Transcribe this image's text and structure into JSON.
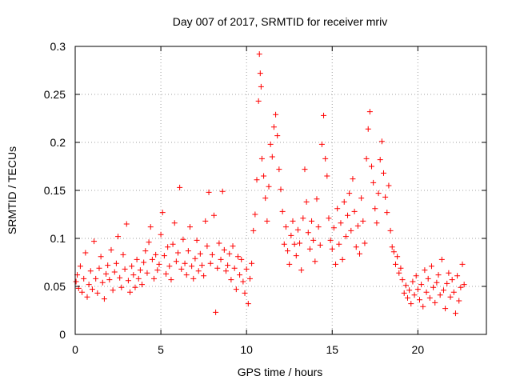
{
  "chart_data": {
    "type": "scatter",
    "title": "Day 007 of 2017, SRMTID for receiver mriv",
    "xlabel": "GPS time / hours",
    "ylabel": "SRMTID / TECUs",
    "xlim": [
      0,
      24
    ],
    "ylim": [
      0,
      0.3
    ],
    "xticks": [
      0,
      5,
      10,
      15,
      20
    ],
    "yticks": [
      0,
      0.05,
      0.1,
      0.15,
      0.2,
      0.25,
      0.3
    ],
    "xtick_labels": [
      "0",
      "5",
      "10",
      "15",
      "20"
    ],
    "ytick_labels": [
      "0",
      "0.05",
      "0.1",
      "0.15",
      "0.2",
      "0.25",
      "0.3"
    ],
    "grid": true,
    "marker": "+",
    "color": "#ff0000",
    "series": [
      {
        "name": "SRMTID",
        "points": [
          [
            0.05,
            0.055
          ],
          [
            0.12,
            0.062
          ],
          [
            0.2,
            0.048
          ],
          [
            0.3,
            0.071
          ],
          [
            0.4,
            0.044
          ],
          [
            0.5,
            0.058
          ],
          [
            0.6,
            0.085
          ],
          [
            0.7,
            0.039
          ],
          [
            0.8,
            0.052
          ],
          [
            0.9,
            0.066
          ],
          [
            1.0,
            0.047
          ],
          [
            1.1,
            0.097
          ],
          [
            1.2,
            0.058
          ],
          [
            1.3,
            0.043
          ],
          [
            1.4,
            0.069
          ],
          [
            1.5,
            0.081
          ],
          [
            1.6,
            0.054
          ],
          [
            1.7,
            0.037
          ],
          [
            1.8,
            0.063
          ],
          [
            1.9,
            0.072
          ],
          [
            2.0,
            0.057
          ],
          [
            2.1,
            0.088
          ],
          [
            2.2,
            0.046
          ],
          [
            2.3,
            0.065
          ],
          [
            2.4,
            0.074
          ],
          [
            2.5,
            0.102
          ],
          [
            2.6,
            0.059
          ],
          [
            2.7,
            0.049
          ],
          [
            2.8,
            0.083
          ],
          [
            2.9,
            0.068
          ],
          [
            3.0,
            0.115
          ],
          [
            3.1,
            0.056
          ],
          [
            3.2,
            0.044
          ],
          [
            3.3,
            0.071
          ],
          [
            3.4,
            0.062
          ],
          [
            3.5,
            0.049
          ],
          [
            3.6,
            0.078
          ],
          [
            3.7,
            0.058
          ],
          [
            3.8,
            0.067
          ],
          [
            3.9,
            0.052
          ],
          [
            4.0,
            0.075
          ],
          [
            4.1,
            0.087
          ],
          [
            4.2,
            0.064
          ],
          [
            4.3,
            0.096
          ],
          [
            4.4,
            0.112
          ],
          [
            4.5,
            0.078
          ],
          [
            4.6,
            0.058
          ],
          [
            4.7,
            0.083
          ],
          [
            4.8,
            0.067
          ],
          [
            4.9,
            0.073
          ],
          [
            5.0,
            0.104
          ],
          [
            5.1,
            0.127
          ],
          [
            5.2,
            0.082
          ],
          [
            5.3,
            0.063
          ],
          [
            5.4,
            0.091
          ],
          [
            5.5,
            0.071
          ],
          [
            5.6,
            0.057
          ],
          [
            5.7,
            0.094
          ],
          [
            5.8,
            0.116
          ],
          [
            5.9,
            0.076
          ],
          [
            6.0,
            0.085
          ],
          [
            6.1,
            0.153
          ],
          [
            6.2,
            0.068
          ],
          [
            6.3,
            0.099
          ],
          [
            6.4,
            0.074
          ],
          [
            6.5,
            0.062
          ],
          [
            6.6,
            0.087
          ],
          [
            6.7,
            0.112
          ],
          [
            6.8,
            0.071
          ],
          [
            6.9,
            0.058
          ],
          [
            7.0,
            0.079
          ],
          [
            7.1,
            0.098
          ],
          [
            7.2,
            0.066
          ],
          [
            7.3,
            0.084
          ],
          [
            7.4,
            0.072
          ],
          [
            7.5,
            0.061
          ],
          [
            7.6,
            0.118
          ],
          [
            7.7,
            0.092
          ],
          [
            7.8,
            0.148
          ],
          [
            7.9,
            0.074
          ],
          [
            8.0,
            0.083
          ],
          [
            8.1,
            0.124
          ],
          [
            8.2,
            0.023
          ],
          [
            8.3,
            0.069
          ],
          [
            8.4,
            0.095
          ],
          [
            8.5,
            0.078
          ],
          [
            8.6,
            0.149
          ],
          [
            8.7,
            0.088
          ],
          [
            8.8,
            0.066
          ],
          [
            8.9,
            0.072
          ],
          [
            9.0,
            0.084
          ],
          [
            9.1,
            0.057
          ],
          [
            9.2,
            0.092
          ],
          [
            9.3,
            0.069
          ],
          [
            9.4,
            0.047
          ],
          [
            9.5,
            0.081
          ],
          [
            9.6,
            0.062
          ],
          [
            9.7,
            0.078
          ],
          [
            9.8,
            0.055
          ],
          [
            9.9,
            0.043
          ],
          [
            10.0,
            0.068
          ],
          [
            10.1,
            0.032
          ],
          [
            10.2,
            0.058
          ],
          [
            10.3,
            0.074
          ],
          [
            10.4,
            0.108
          ],
          [
            10.5,
            0.125
          ],
          [
            10.6,
            0.161
          ],
          [
            10.7,
            0.243
          ],
          [
            10.75,
            0.292
          ],
          [
            10.8,
            0.272
          ],
          [
            10.85,
            0.258
          ],
          [
            10.9,
            0.183
          ],
          [
            11.0,
            0.165
          ],
          [
            11.1,
            0.142
          ],
          [
            11.2,
            0.118
          ],
          [
            11.3,
            0.154
          ],
          [
            11.4,
            0.198
          ],
          [
            11.5,
            0.185
          ],
          [
            11.6,
            0.216
          ],
          [
            11.7,
            0.229
          ],
          [
            11.8,
            0.207
          ],
          [
            11.9,
            0.172
          ],
          [
            12.0,
            0.151
          ],
          [
            12.1,
            0.128
          ],
          [
            12.2,
            0.094
          ],
          [
            12.3,
            0.112
          ],
          [
            12.4,
            0.087
          ],
          [
            12.5,
            0.073
          ],
          [
            12.6,
            0.103
          ],
          [
            12.7,
            0.118
          ],
          [
            12.8,
            0.094
          ],
          [
            12.9,
            0.082
          ],
          [
            13.0,
            0.109
          ],
          [
            13.1,
            0.095
          ],
          [
            13.2,
            0.067
          ],
          [
            13.3,
            0.121
          ],
          [
            13.4,
            0.172
          ],
          [
            13.5,
            0.138
          ],
          [
            13.6,
            0.106
          ],
          [
            13.7,
            0.089
          ],
          [
            13.8,
            0.118
          ],
          [
            13.9,
            0.098
          ],
          [
            14.0,
            0.076
          ],
          [
            14.1,
            0.141
          ],
          [
            14.2,
            0.112
          ],
          [
            14.3,
            0.093
          ],
          [
            14.4,
            0.198
          ],
          [
            14.5,
            0.228
          ],
          [
            14.6,
            0.183
          ],
          [
            14.7,
            0.165
          ],
          [
            14.8,
            0.121
          ],
          [
            14.9,
            0.098
          ],
          [
            15.0,
            0.089
          ],
          [
            15.1,
            0.111
          ],
          [
            15.2,
            0.073
          ],
          [
            15.3,
            0.131
          ],
          [
            15.4,
            0.094
          ],
          [
            15.5,
            0.116
          ],
          [
            15.6,
            0.078
          ],
          [
            15.7,
            0.138
          ],
          [
            15.8,
            0.102
          ],
          [
            15.9,
            0.124
          ],
          [
            16.0,
            0.147
          ],
          [
            16.1,
            0.108
          ],
          [
            16.2,
            0.162
          ],
          [
            16.3,
            0.128
          ],
          [
            16.4,
            0.091
          ],
          [
            16.5,
            0.113
          ],
          [
            16.6,
            0.084
          ],
          [
            16.7,
            0.142
          ],
          [
            16.8,
            0.118
          ],
          [
            16.9,
            0.095
          ],
          [
            17.0,
            0.183
          ],
          [
            17.1,
            0.214
          ],
          [
            17.2,
            0.232
          ],
          [
            17.3,
            0.175
          ],
          [
            17.4,
            0.158
          ],
          [
            17.5,
            0.131
          ],
          [
            17.6,
            0.116
          ],
          [
            17.7,
            0.147
          ],
          [
            17.8,
            0.182
          ],
          [
            17.9,
            0.201
          ],
          [
            18.0,
            0.168
          ],
          [
            18.1,
            0.143
          ],
          [
            18.2,
            0.127
          ],
          [
            18.3,
            0.155
          ],
          [
            18.4,
            0.108
          ],
          [
            18.5,
            0.091
          ],
          [
            18.6,
            0.086
          ],
          [
            18.7,
            0.073
          ],
          [
            18.8,
            0.081
          ],
          [
            18.9,
            0.064
          ],
          [
            19.0,
            0.069
          ],
          [
            19.1,
            0.057
          ],
          [
            19.2,
            0.043
          ],
          [
            19.3,
            0.051
          ],
          [
            19.4,
            0.038
          ],
          [
            19.5,
            0.046
          ],
          [
            19.6,
            0.032
          ],
          [
            19.7,
            0.055
          ],
          [
            19.8,
            0.041
          ],
          [
            19.9,
            0.061
          ],
          [
            20.0,
            0.047
          ],
          [
            20.1,
            0.036
          ],
          [
            20.2,
            0.052
          ],
          [
            20.3,
            0.029
          ],
          [
            20.4,
            0.067
          ],
          [
            20.5,
            0.044
          ],
          [
            20.6,
            0.058
          ],
          [
            20.7,
            0.038
          ],
          [
            20.8,
            0.071
          ],
          [
            20.9,
            0.049
          ],
          [
            21.0,
            0.033
          ],
          [
            21.1,
            0.054
          ],
          [
            21.2,
            0.062
          ],
          [
            21.3,
            0.041
          ],
          [
            21.4,
            0.078
          ],
          [
            21.5,
            0.046
          ],
          [
            21.6,
            0.027
          ],
          [
            21.7,
            0.053
          ],
          [
            21.8,
            0.064
          ],
          [
            21.9,
            0.039
          ],
          [
            22.0,
            0.057
          ],
          [
            22.1,
            0.044
          ],
          [
            22.2,
            0.022
          ],
          [
            22.3,
            0.061
          ],
          [
            22.4,
            0.035
          ],
          [
            22.5,
            0.049
          ],
          [
            22.6,
            0.073
          ],
          [
            22.7,
            0.052
          ]
        ]
      }
    ]
  }
}
